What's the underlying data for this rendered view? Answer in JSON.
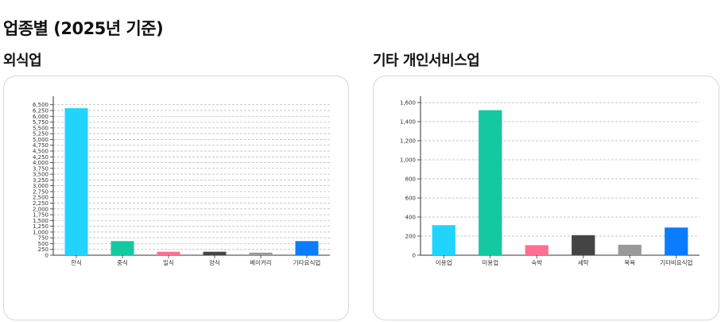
{
  "page": {
    "title": "업종별 (2025년 기준)"
  },
  "sections": [
    {
      "title": "외식업"
    },
    {
      "title": "기타 개인서비스업"
    }
  ],
  "chart_data": [
    {
      "type": "bar",
      "categories": [
        "한식",
        "중식",
        "일식",
        "양식",
        "베이커리",
        "기타요식업"
      ],
      "values": [
        6350,
        610,
        150,
        150,
        110,
        610
      ],
      "colors": [
        "#21D4FD",
        "#14C8A0",
        "#FF6F91",
        "#444444",
        "#999999",
        "#0A7CFF"
      ],
      "ylim": [
        0,
        6800
      ],
      "yticks": [
        0,
        250,
        500,
        750,
        1000,
        1250,
        1500,
        1750,
        2000,
        2250,
        2500,
        2750,
        3000,
        3250,
        3500,
        3750,
        4000,
        4250,
        4500,
        4750,
        5000,
        5250,
        5500,
        5750,
        6000,
        6250,
        6500
      ],
      "ytick_labels": [
        "0",
        "250",
        "500",
        "750",
        "1,000",
        "1,250",
        "1,500",
        "1,750",
        "2,000",
        "2,250",
        "2,500",
        "2,750",
        "3,000",
        "3,250",
        "3,500",
        "3,750",
        "4,000",
        "4,250",
        "4,500",
        "4,750",
        "5,000",
        "5,250",
        "5,500",
        "5,750",
        "6,000",
        "6,250",
        "6,500"
      ],
      "grid": true,
      "legend": "none"
    },
    {
      "type": "bar",
      "categories": [
        "이용업",
        "미용업",
        "숙박",
        "세탁",
        "목욕",
        "기타비요식업"
      ],
      "values": [
        315,
        1520,
        105,
        210,
        110,
        290
      ],
      "colors": [
        "#21D4FD",
        "#14C8A0",
        "#FF6F91",
        "#444444",
        "#999999",
        "#0A7CFF"
      ],
      "ylim": [
        0,
        1650
      ],
      "yticks": [
        0,
        200,
        400,
        600,
        800,
        1000,
        1200,
        1400,
        1600
      ],
      "ytick_labels": [
        "0",
        "200",
        "400",
        "600",
        "800",
        "1,000",
        "1,200",
        "1,400",
        "1,600"
      ],
      "grid": true,
      "legend": "none"
    }
  ]
}
